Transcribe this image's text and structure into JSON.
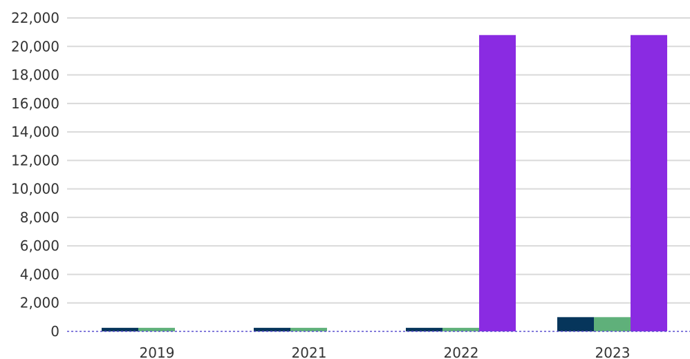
{
  "chart_data": {
    "type": "bar",
    "categories": [
      "2019",
      "2021",
      "2022",
      "2023"
    ],
    "series": [
      {
        "color": "#06355b",
        "values": [
          250,
          250,
          250,
          1000
        ]
      },
      {
        "color": "#5fb07a",
        "values": [
          250,
          250,
          250,
          1000
        ]
      },
      {
        "color": "#8a2be2",
        "values": [
          0,
          0,
          20800,
          20800
        ]
      }
    ],
    "yticks": [
      0,
      2000,
      4000,
      6000,
      8000,
      10000,
      12000,
      14000,
      16000,
      18000,
      20000,
      22000
    ],
    "ytick_labels": [
      "0",
      "2,000",
      "4,000",
      "6,000",
      "8,000",
      "10,000",
      "12,000",
      "14,000",
      "16,000",
      "18,000",
      "20,000",
      "22,000"
    ],
    "ylim": [
      0,
      22000
    ],
    "grid": true,
    "legend": "none",
    "title": "",
    "xlabel": "",
    "ylabel": ""
  }
}
